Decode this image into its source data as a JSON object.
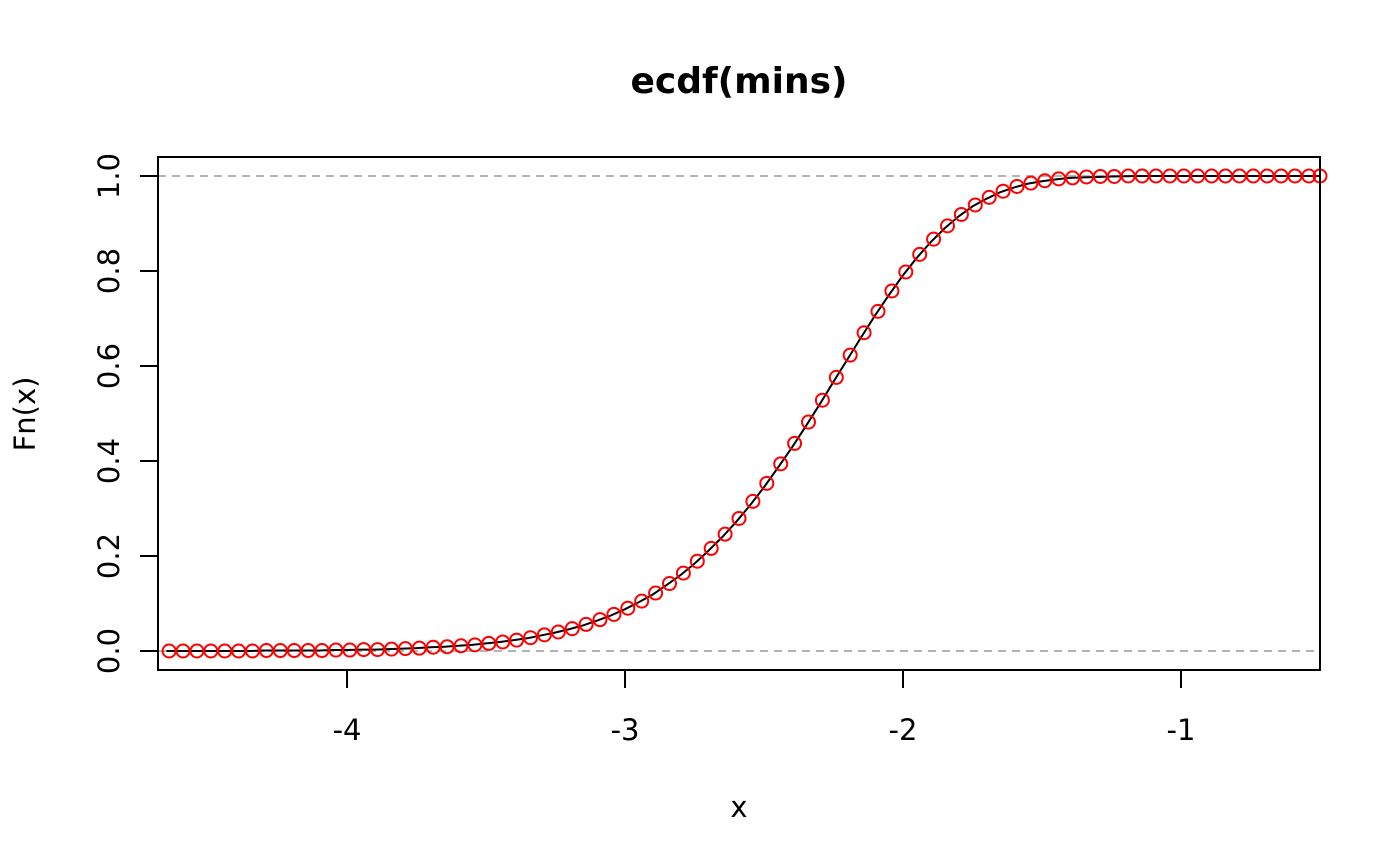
{
  "chart_data": {
    "type": "line",
    "title": "ecdf(mins)",
    "xlabel": "x",
    "ylabel": "Fn(x)",
    "xlim": [
      -4.68,
      -0.5
    ],
    "ylim": [
      -0.04,
      1.04
    ],
    "x_ticks": [
      -4,
      -3,
      -2,
      -1
    ],
    "x_tick_labels": [
      "-4",
      "-3",
      "-2",
      "-1"
    ],
    "y_ticks": [
      0,
      0.2,
      0.4,
      0.6,
      0.8,
      1
    ],
    "y_tick_labels": [
      "0.0",
      "0.2",
      "0.4",
      "0.6",
      "0.8",
      "1.0"
    ],
    "reference_lines": [
      0,
      1
    ],
    "grid": false,
    "legend": "none",
    "colors": {
      "line": "#000000",
      "points": "#ff0000",
      "reference": "#b3b3b3"
    },
    "series": [
      {
        "role": "ecdf-line",
        "x": [
          -4.65,
          -4.6,
          -4.55,
          -4.5,
          -4.45,
          -4.4,
          -4.35,
          -4.3,
          -4.25,
          -4.2,
          -4.15,
          -4.1,
          -4.05,
          -4.0,
          -3.95,
          -3.9,
          -3.85,
          -3.8,
          -3.75,
          -3.7,
          -3.65,
          -3.6,
          -3.55,
          -3.5,
          -3.45,
          -3.4,
          -3.35,
          -3.3,
          -3.25,
          -3.2,
          -3.15,
          -3.1,
          -3.05,
          -3.0,
          -2.95,
          -2.9,
          -2.85,
          -2.8,
          -2.75,
          -2.7,
          -2.65,
          -2.6,
          -2.55,
          -2.5,
          -2.45,
          -2.4,
          -2.35,
          -2.3,
          -2.25,
          -2.2,
          -2.15,
          -2.1,
          -2.05,
          -2.0,
          -1.95,
          -1.9,
          -1.85,
          -1.8,
          -1.75,
          -1.7,
          -1.65,
          -1.6,
          -1.55,
          -1.5,
          -1.45,
          -1.4,
          -1.35,
          -1.3,
          -1.25,
          -1.2,
          -1.15,
          -1.1,
          -1.05,
          -1.0,
          -0.95,
          -0.9,
          -0.85,
          -0.8,
          -0.75,
          -0.7,
          -0.65,
          -0.6,
          -0.55,
          -0.5
        ],
        "y": [
          0.0,
          0.0,
          0.0,
          0.0,
          0.0,
          0.0,
          0.0,
          0.001,
          0.001,
          0.001,
          0.001,
          0.001,
          0.002,
          0.002,
          0.003,
          0.003,
          0.004,
          0.005,
          0.006,
          0.008,
          0.009,
          0.011,
          0.013,
          0.016,
          0.019,
          0.023,
          0.027,
          0.033,
          0.039,
          0.046,
          0.054,
          0.064,
          0.075,
          0.088,
          0.103,
          0.119,
          0.139,
          0.16,
          0.184,
          0.211,
          0.24,
          0.272,
          0.307,
          0.345,
          0.386,
          0.428,
          0.473,
          0.519,
          0.567,
          0.614,
          0.661,
          0.707,
          0.75,
          0.791,
          0.828,
          0.861,
          0.89,
          0.915,
          0.936,
          0.952,
          0.966,
          0.976,
          0.984,
          0.989,
          0.993,
          0.996,
          0.997,
          0.998,
          0.999,
          0.9995,
          1.0,
          1.0,
          1.0,
          1.0,
          1.0,
          1.0,
          1.0,
          1.0,
          1.0,
          1.0,
          1.0,
          1.0,
          1.0,
          1.0
        ]
      },
      {
        "role": "points",
        "x": [
          -4.64,
          -4.59,
          -4.54,
          -4.49,
          -4.44,
          -4.39,
          -4.34,
          -4.29,
          -4.24,
          -4.19,
          -4.14,
          -4.09,
          -4.04,
          -3.99,
          -3.94,
          -3.89,
          -3.84,
          -3.79,
          -3.74,
          -3.69,
          -3.64,
          -3.59,
          -3.54,
          -3.49,
          -3.44,
          -3.39,
          -3.34,
          -3.29,
          -3.24,
          -3.19,
          -3.14,
          -3.09,
          -3.04,
          -2.99,
          -2.94,
          -2.89,
          -2.84,
          -2.79,
          -2.74,
          -2.69,
          -2.64,
          -2.59,
          -2.54,
          -2.49,
          -2.44,
          -2.39,
          -2.34,
          -2.29,
          -2.24,
          -2.19,
          -2.14,
          -2.09,
          -2.04,
          -1.99,
          -1.94,
          -1.89,
          -1.84,
          -1.79,
          -1.74,
          -1.69,
          -1.64,
          -1.59,
          -1.54,
          -1.49,
          -1.44,
          -1.39,
          -1.34,
          -1.29,
          -1.24,
          -1.19,
          -1.14,
          -1.09,
          -1.04,
          -0.99,
          -0.94,
          -0.89,
          -0.84,
          -0.79,
          -0.74,
          -0.69,
          -0.64,
          -0.59,
          -0.54,
          -0.5
        ],
        "y": [
          0.0,
          0.0,
          0.0,
          0.0,
          0.0,
          0.0,
          0.0,
          0.001,
          0.001,
          0.001,
          0.001,
          0.001,
          0.002,
          0.002,
          0.003,
          0.003,
          0.004,
          0.005,
          0.006,
          0.008,
          0.009,
          0.011,
          0.013,
          0.016,
          0.019,
          0.023,
          0.028,
          0.034,
          0.04,
          0.047,
          0.056,
          0.066,
          0.077,
          0.09,
          0.105,
          0.122,
          0.142,
          0.164,
          0.189,
          0.216,
          0.246,
          0.279,
          0.315,
          0.353,
          0.394,
          0.437,
          0.482,
          0.528,
          0.576,
          0.623,
          0.67,
          0.715,
          0.758,
          0.798,
          0.835,
          0.867,
          0.895,
          0.919,
          0.939,
          0.955,
          0.968,
          0.978,
          0.985,
          0.99,
          0.994,
          0.996,
          0.998,
          0.999,
          0.999,
          1.0,
          1.0,
          1.0,
          1.0,
          1.0,
          1.0,
          1.0,
          1.0,
          1.0,
          1.0,
          1.0,
          1.0,
          1.0,
          1.0,
          1.0
        ]
      }
    ]
  }
}
